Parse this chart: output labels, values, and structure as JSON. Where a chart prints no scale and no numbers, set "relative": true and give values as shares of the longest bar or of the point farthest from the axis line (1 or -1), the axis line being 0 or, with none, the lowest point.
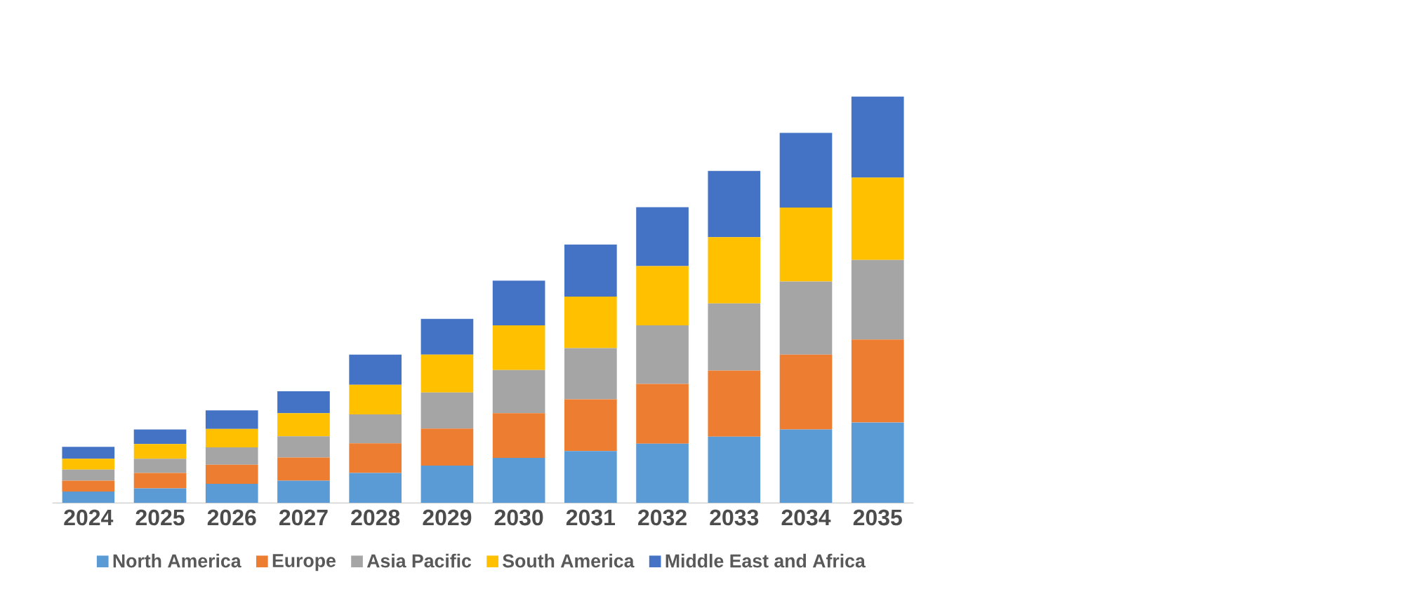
{
  "chart_data": {
    "type": "bar",
    "stacked": true,
    "relative": true,
    "legend": "bottom",
    "categories": [
      "2024",
      "2025",
      "2026",
      "2027",
      "2028",
      "2029",
      "2030",
      "2031",
      "2032",
      "2033",
      "2034",
      "2035"
    ],
    "series": [
      {
        "name": "North America",
        "color": "#5b9bd5",
        "values": [
          0.028,
          0.036,
          0.047,
          0.055,
          0.074,
          0.092,
          0.111,
          0.128,
          0.146,
          0.163,
          0.181,
          0.198
        ]
      },
      {
        "name": "Europe",
        "color": "#ed7d31",
        "values": [
          0.027,
          0.038,
          0.047,
          0.057,
          0.073,
          0.091,
          0.11,
          0.127,
          0.147,
          0.163,
          0.184,
          0.204
        ]
      },
      {
        "name": "Asia Pacific",
        "color": "#a5a5a5",
        "values": [
          0.027,
          0.035,
          0.043,
          0.052,
          0.071,
          0.089,
          0.106,
          0.126,
          0.144,
          0.165,
          0.18,
          0.196
        ]
      },
      {
        "name": "South America",
        "color": "#ffc000",
        "values": [
          0.027,
          0.036,
          0.045,
          0.057,
          0.073,
          0.093,
          0.11,
          0.127,
          0.146,
          0.163,
          0.182,
          0.203
        ]
      },
      {
        "name": "Middle East and Africa",
        "color": "#4472c4",
        "values": [
          0.029,
          0.036,
          0.046,
          0.054,
          0.074,
          0.088,
          0.11,
          0.128,
          0.145,
          0.163,
          0.184,
          0.199
        ]
      }
    ]
  }
}
